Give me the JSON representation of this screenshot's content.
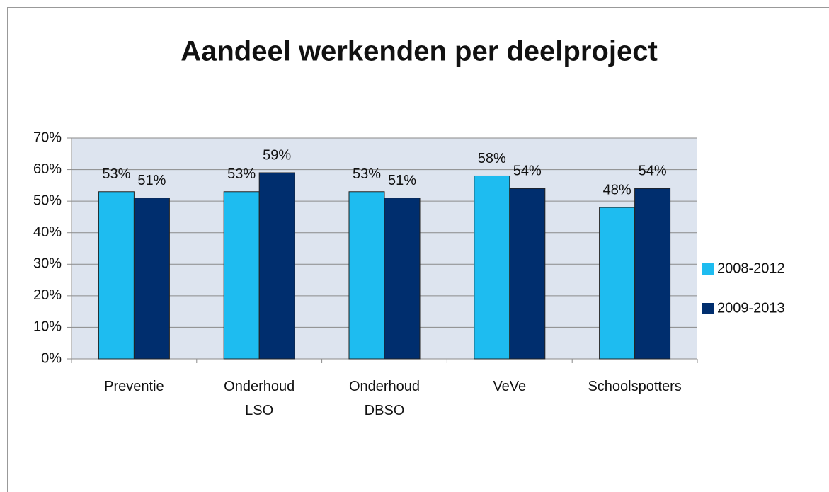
{
  "chart_data": {
    "type": "bar",
    "title": "Aandeel werkenden per deelproject",
    "categories": [
      "Preventie",
      "Onderhoud LSO",
      "Onderhoud DBSO",
      "VeVe",
      "Schoolspotters"
    ],
    "series": [
      {
        "name": "2008-2012",
        "color": "#1ebcf0",
        "values": [
          53,
          53,
          53,
          58,
          48
        ],
        "value_labels": [
          "53%",
          "53%",
          "53%",
          "58%",
          "48%"
        ]
      },
      {
        "name": "2009-2013",
        "color": "#002e6e",
        "values": [
          51,
          59,
          51,
          54,
          54
        ],
        "value_labels": [
          "51%",
          "59%",
          "51%",
          "54%",
          "54%"
        ]
      }
    ],
    "ylim": [
      0,
      70
    ],
    "yticks": [
      {
        "value": 0,
        "label": "0%"
      },
      {
        "value": 10,
        "label": "10%"
      },
      {
        "value": 20,
        "label": "20%"
      },
      {
        "value": 30,
        "label": "30%"
      },
      {
        "value": 40,
        "label": "40%"
      },
      {
        "value": 50,
        "label": "50%"
      },
      {
        "value": 60,
        "label": "60%"
      },
      {
        "value": 70,
        "label": "70%"
      }
    ],
    "grid": true,
    "legend": "right"
  }
}
